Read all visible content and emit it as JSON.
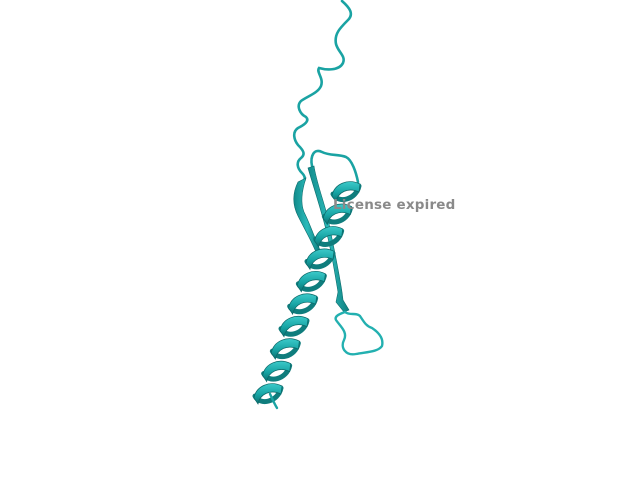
{
  "viewer": {
    "watermark_text": "License expired",
    "cartoon_color": "#1aa7a7",
    "cartoon_dark": "#0f7d7d",
    "cartoon_light": "#36c4c4",
    "background": "#ffffff"
  }
}
